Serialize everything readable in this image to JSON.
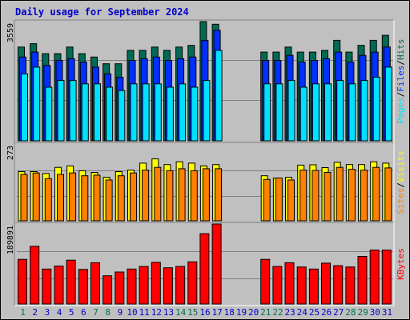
{
  "chart_data": {
    "type": "bar",
    "title": "Daily usage for September 2024",
    "days": [
      "1",
      "2",
      "3",
      "4",
      "5",
      "6",
      "7",
      "8",
      "9",
      "10",
      "11",
      "12",
      "13",
      "14",
      "15",
      "16",
      "17",
      "18",
      "19",
      "20",
      "21",
      "22",
      "23",
      "24",
      "25",
      "26",
      "27",
      "28",
      "29",
      "30",
      "31"
    ],
    "weekend_days": [
      "1",
      "7",
      "8",
      "14",
      "15",
      "21",
      "22",
      "28",
      "29"
    ],
    "colors": {
      "background": "#c0c0c0",
      "title": "#0000cc",
      "hits": "#006b54",
      "files": "#0030ff",
      "pages": "#00e0ff",
      "visits": "#ffff00",
      "sites": "#ff8000",
      "kbytes": "#ff0000",
      "weekend_day": "#007050",
      "weekday": "#0000cc",
      "separator": "#000000"
    },
    "panels": [
      {
        "ymax_label": "3559",
        "ymax": 3559,
        "legend": [
          "Pages",
          "Files",
          "Hits"
        ],
        "legend_separator": "/",
        "series": [
          {
            "name": "Hits",
            "values": [
              2800,
              2900,
              2600,
              2600,
              2800,
              2600,
              2500,
              2300,
              2300,
              2700,
              2700,
              2800,
              2700,
              2800,
              2850,
              3559,
              3480,
              null,
              null,
              null,
              2650,
              2650,
              2800,
              2650,
              2650,
              2700,
              3000,
              2650,
              2850,
              3000,
              3150
            ]
          },
          {
            "name": "Files",
            "values": [
              2500,
              2650,
              2250,
              2400,
              2450,
              2350,
              2200,
              2000,
              1900,
              2400,
              2450,
              2500,
              2400,
              2450,
              2500,
              3000,
              3300,
              null,
              null,
              null,
              2400,
              2400,
              2550,
              2350,
              2400,
              2450,
              2650,
              2350,
              2550,
              2650,
              2800
            ]
          },
          {
            "name": "Pages",
            "values": [
              2000,
              2200,
              1600,
              1800,
              1800,
              1700,
              1700,
              1600,
              1500,
              1700,
              1700,
              1700,
              1600,
              1700,
              1600,
              1800,
              2700,
              null,
              null,
              null,
              1700,
              1700,
              1800,
              1600,
              1700,
              1700,
              1800,
              1700,
              1800,
              1900,
              2200
            ]
          }
        ]
      },
      {
        "ymax_label": "273",
        "ymax": 273,
        "legend": [
          "Sites",
          "Visits"
        ],
        "legend_separator": "/",
        "series": [
          {
            "name": "Visits",
            "values": [
              175,
              175,
              168,
              190,
              195,
              178,
              172,
              155,
              175,
              180,
              205,
              220,
              200,
              210,
              205,
              195,
              200,
              null,
              null,
              null,
              160,
              152,
              155,
              198,
              199,
              189,
              208,
              200,
              200,
              210,
              205
            ]
          },
          {
            "name": "Sites",
            "values": [
              165,
              170,
              150,
              165,
              170,
              160,
              162,
              145,
              160,
              170,
              180,
              190,
              178,
              185,
              178,
              185,
              185,
              null,
              null,
              null,
              147,
              152,
              145,
              180,
              179,
              172,
              190,
              183,
              180,
              190,
              188
            ]
          }
        ]
      },
      {
        "ymax_label": "189891",
        "ymax": 189891,
        "legend": [
          "KBytes"
        ],
        "legend_separator": "",
        "series": [
          {
            "name": "KBytes",
            "values": [
              106000,
              137000,
              83000,
              90000,
              104000,
              82000,
              98000,
              67000,
              76000,
              83000,
              89000,
              99000,
              86000,
              89000,
              100000,
              167000,
              189891,
              null,
              null,
              null,
              106000,
              89000,
              98000,
              88000,
              83000,
              97000,
              91000,
              88000,
              113000,
              128000,
              128000
            ]
          }
        ]
      }
    ]
  }
}
